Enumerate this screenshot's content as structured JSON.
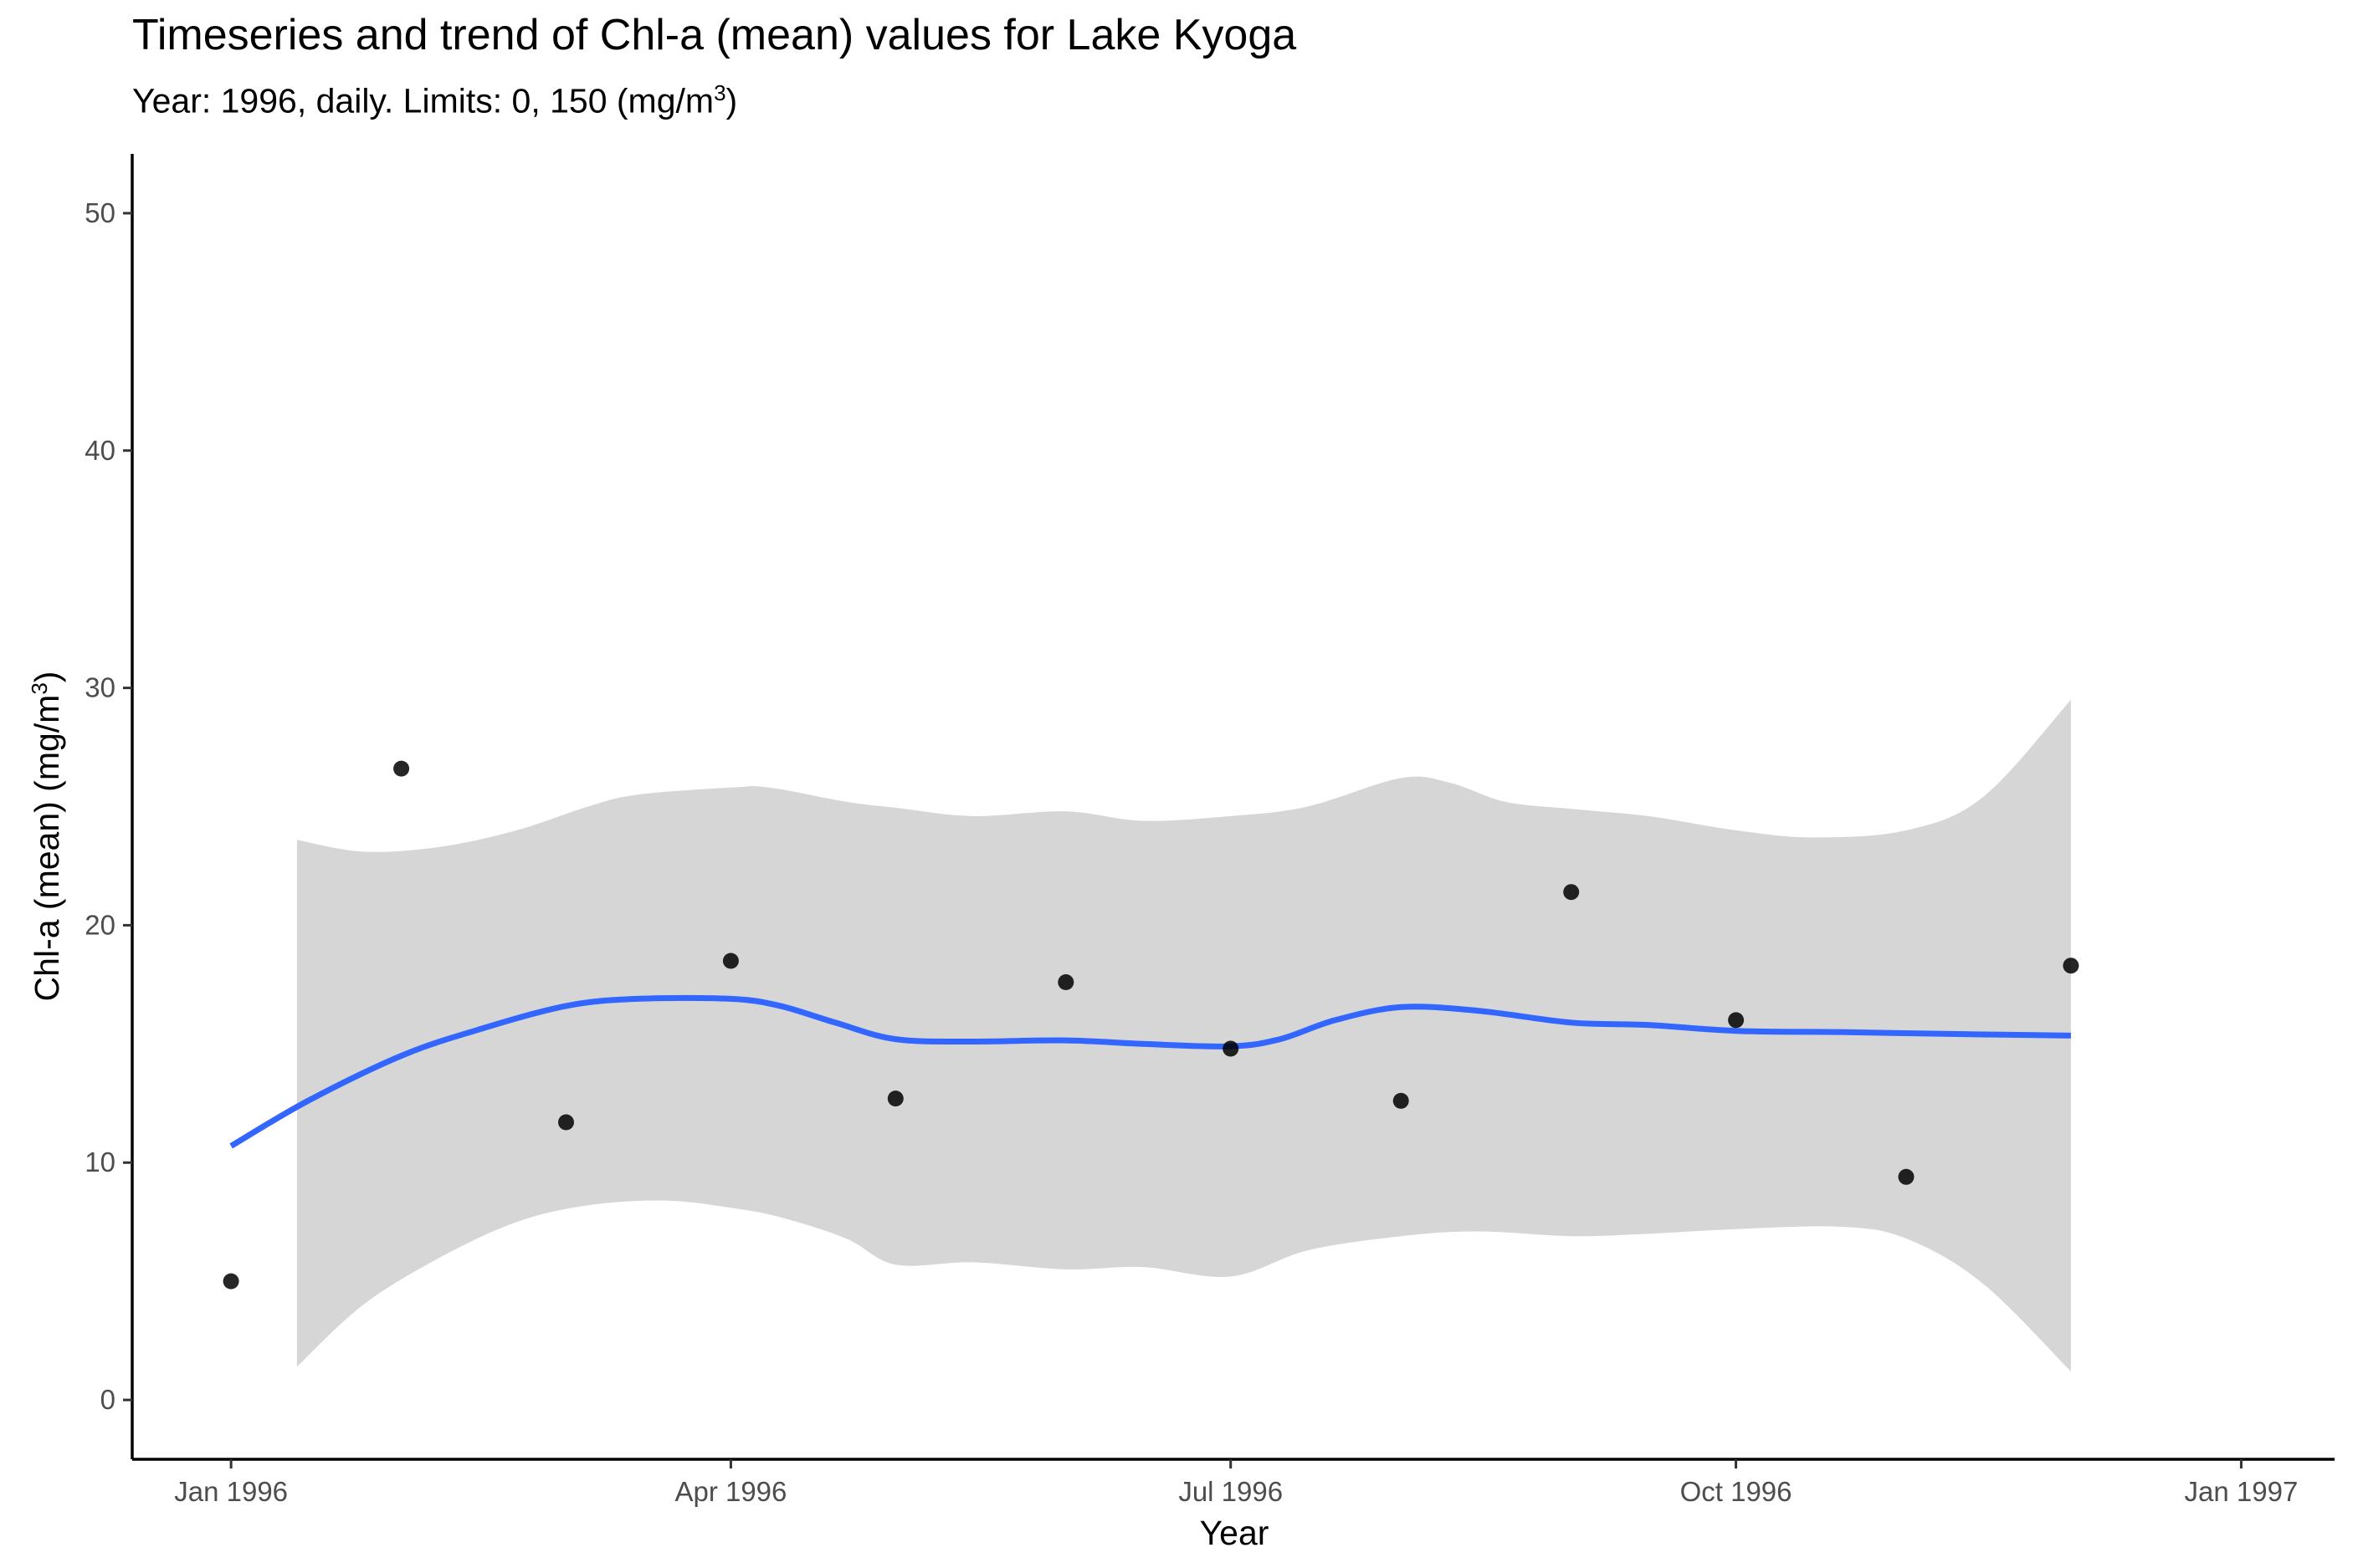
{
  "chart_data": {
    "type": "line",
    "title": "Timeseries and trend of Chl-a (mean) values for Lake Kyoga",
    "subtitle_prefix": "Year: 1996, daily. Limits: 0, 150 (mg/m",
    "subtitle_sup": "3",
    "subtitle_suffix": ")",
    "xlabel": "Year",
    "ylabel_prefix": "Chl-a (mean) (mg/m",
    "ylabel_sup": "3",
    "ylabel_suffix": ")",
    "ylim": [
      -2.5,
      52.5
    ],
    "xlim": [
      "1995-12-14",
      "1997-01-18"
    ],
    "y_ticks": [
      0,
      10,
      20,
      30,
      40,
      50
    ],
    "x_ticks": [
      {
        "date": "1996-01-01",
        "label": "Jan 1996"
      },
      {
        "date": "1996-04-01",
        "label": "Apr 1996"
      },
      {
        "date": "1996-07-01",
        "label": "Jul 1996"
      },
      {
        "date": "1996-10-01",
        "label": "Oct 1996"
      },
      {
        "date": "1997-01-01",
        "label": "Jan 1997"
      }
    ],
    "grid": false,
    "colors": {
      "points": "#000000",
      "trend": "#3366FF",
      "ribbon": "#D6D6D6",
      "axis": "#000000"
    },
    "points": [
      {
        "x": "1996-01-01",
        "y": 5.0
      },
      {
        "x": "1996-02-01",
        "y": 26.6
      },
      {
        "x": "1996-03-02",
        "y": 11.7
      },
      {
        "x": "1996-04-01",
        "y": 18.5
      },
      {
        "x": "1996-05-01",
        "y": 12.7
      },
      {
        "x": "1996-06-01",
        "y": 17.6
      },
      {
        "x": "1996-07-01",
        "y": 14.8
      },
      {
        "x": "1996-08-01",
        "y": 12.6
      },
      {
        "x": "1996-09-01",
        "y": 21.4
      },
      {
        "x": "1996-10-01",
        "y": 16.0
      },
      {
        "x": "1996-11-01",
        "y": 9.4
      },
      {
        "x": "1996-12-01",
        "y": 18.3
      }
    ],
    "trend": [
      {
        "x": "1996-01-01",
        "y": 10.7
      },
      {
        "x": "1996-01-15",
        "y": 12.6
      },
      {
        "x": "1996-02-01",
        "y": 14.5
      },
      {
        "x": "1996-02-15",
        "y": 15.6
      },
      {
        "x": "1996-03-02",
        "y": 16.6
      },
      {
        "x": "1996-03-15",
        "y": 16.9
      },
      {
        "x": "1996-04-01",
        "y": 16.9
      },
      {
        "x": "1996-04-10",
        "y": 16.6
      },
      {
        "x": "1996-04-20",
        "y": 15.9
      },
      {
        "x": "1996-05-01",
        "y": 15.2
      },
      {
        "x": "1996-05-15",
        "y": 15.1
      },
      {
        "x": "1996-06-01",
        "y": 15.15
      },
      {
        "x": "1996-06-15",
        "y": 15.0
      },
      {
        "x": "1996-07-01",
        "y": 14.9
      },
      {
        "x": "1996-07-10",
        "y": 15.2
      },
      {
        "x": "1996-07-20",
        "y": 16.0
      },
      {
        "x": "1996-08-01",
        "y": 16.55
      },
      {
        "x": "1996-08-15",
        "y": 16.4
      },
      {
        "x": "1996-09-01",
        "y": 15.9
      },
      {
        "x": "1996-09-15",
        "y": 15.8
      },
      {
        "x": "1996-10-01",
        "y": 15.55
      },
      {
        "x": "1996-10-20",
        "y": 15.5
      },
      {
        "x": "1996-11-01",
        "y": 15.45
      },
      {
        "x": "1996-11-15",
        "y": 15.4
      },
      {
        "x": "1996-12-01",
        "y": 15.35
      }
    ],
    "ribbon_upper": [
      {
        "x": "1996-01-13",
        "y": 23.6
      },
      {
        "x": "1996-01-25",
        "y": 23.1
      },
      {
        "x": "1996-02-08",
        "y": 23.3
      },
      {
        "x": "1996-02-22",
        "y": 24.0
      },
      {
        "x": "1996-03-06",
        "y": 25.0
      },
      {
        "x": "1996-03-15",
        "y": 25.5
      },
      {
        "x": "1996-04-01",
        "y": 25.8
      },
      {
        "x": "1996-04-08",
        "y": 25.8
      },
      {
        "x": "1996-04-22",
        "y": 25.2
      },
      {
        "x": "1996-05-01",
        "y": 24.95
      },
      {
        "x": "1996-05-15",
        "y": 24.6
      },
      {
        "x": "1996-06-01",
        "y": 24.8
      },
      {
        "x": "1996-06-15",
        "y": 24.4
      },
      {
        "x": "1996-07-01",
        "y": 24.6
      },
      {
        "x": "1996-07-15",
        "y": 25.0
      },
      {
        "x": "1996-08-01",
        "y": 26.2
      },
      {
        "x": "1996-08-10",
        "y": 26.0
      },
      {
        "x": "1996-08-20",
        "y": 25.2
      },
      {
        "x": "1996-09-01",
        "y": 24.9
      },
      {
        "x": "1996-09-15",
        "y": 24.6
      },
      {
        "x": "1996-10-01",
        "y": 24.0
      },
      {
        "x": "1996-10-15",
        "y": 23.7
      },
      {
        "x": "1996-11-01",
        "y": 24.0
      },
      {
        "x": "1996-11-15",
        "y": 25.4
      },
      {
        "x": "1996-12-01",
        "y": 29.5
      }
    ],
    "ribbon_lower": [
      {
        "x": "1996-01-13",
        "y": 1.4
      },
      {
        "x": "1996-01-25",
        "y": 4.0
      },
      {
        "x": "1996-02-08",
        "y": 6.0
      },
      {
        "x": "1996-02-22",
        "y": 7.5
      },
      {
        "x": "1996-03-06",
        "y": 8.2
      },
      {
        "x": "1996-03-20",
        "y": 8.4
      },
      {
        "x": "1996-04-01",
        "y": 8.1
      },
      {
        "x": "1996-04-10",
        "y": 7.7
      },
      {
        "x": "1996-04-22",
        "y": 6.8
      },
      {
        "x": "1996-05-01",
        "y": 5.7
      },
      {
        "x": "1996-05-15",
        "y": 5.8
      },
      {
        "x": "1996-06-01",
        "y": 5.5
      },
      {
        "x": "1996-06-15",
        "y": 5.6
      },
      {
        "x": "1996-07-01",
        "y": 5.2
      },
      {
        "x": "1996-07-15",
        "y": 6.3
      },
      {
        "x": "1996-08-01",
        "y": 6.9
      },
      {
        "x": "1996-08-15",
        "y": 7.1
      },
      {
        "x": "1996-09-01",
        "y": 6.9
      },
      {
        "x": "1996-09-15",
        "y": 7.0
      },
      {
        "x": "1996-10-01",
        "y": 7.2
      },
      {
        "x": "1996-10-20",
        "y": 7.3
      },
      {
        "x": "1996-11-01",
        "y": 6.8
      },
      {
        "x": "1996-11-15",
        "y": 4.9
      },
      {
        "x": "1996-12-01",
        "y": 1.2
      }
    ]
  }
}
